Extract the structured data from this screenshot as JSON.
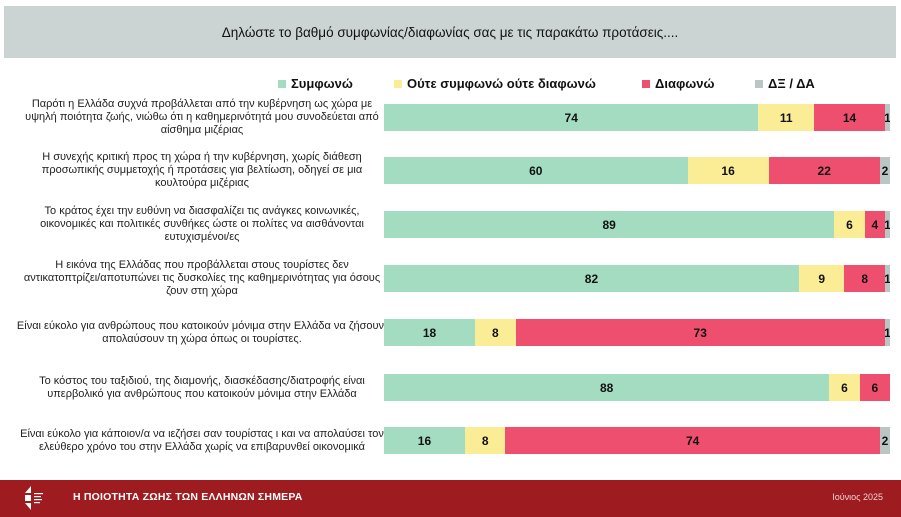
{
  "header": {
    "title": "Δηλώστε το βαθμό συμφωνίας/διαφωνίας σας με τις παρακάτω προτάσεις...."
  },
  "footer": {
    "title": "Η ΠΟΙΟΤΗΤΑ ΖΩΗΣ ΤΩΝ ΕΛΛΗΝΩΝ ΣΗΜΕΡΑ",
    "date": "Ιούνιος 2025"
  },
  "chart_data": {
    "type": "bar",
    "orientation": "horizontal",
    "stacked": true,
    "title": "Δηλώστε το βαθμό συμφωνίας/διαφωνίας σας με τις παρακάτω προτάσεις....",
    "legend_position": "top",
    "xlim": [
      0,
      100
    ],
    "categories": [
      "Παρότι η Ελλάδα συχνά προβάλλεται από την κυβέρνηση ως χώρα με υψηλή ποιότητα ζωής, νιώθω ότι η καθημερινότητά μου συνοδεύεται από αίσθημα μιζέριας",
      "Η συνεχής κριτική προς τη χώρα ή την κυβέρνηση, χωρίς διάθεση προσωπικής συμμετοχής ή προτάσεις για βελτίωση, οδηγεί σε μια κουλτούρα μιζέριας",
      "Το κράτος έχει την ευθύνη να διασφαλίζει τις ανάγκες κοινωνικές, οικονομικές και πολιτικές συνθήκες ώστε οι πολίτες να αισθάνονται ευτυχισμένοι/ες",
      "Η εικόνα της Ελλάδας που προβάλλεται στους τουρίστες δεν αντικατοπτρίζει/αποτυπώνει τις δυσκολίες της καθημερινότητας για όσους ζουν στη χώρα",
      "Είναι εύκολο για ανθρώπους που κατοικούν μόνιμα στην Ελλάδα να ζήσουν/ απολαύσουν τη χώρα όπως οι τουρίστες.",
      "Το κόστος του ταξιδιού, της διαμονής, διασκέδασης/διατροφής είναι υπερβολικό για ανθρώπους που κατοικούν μόνιμα στην Ελλάδα",
      "Είναι εύκολο για κάποιον/α να ιεζήσει σαν τουρίστας\tι και να απολαύσει τον ελεύθερο χρόνο του στην Ελλάδα χωρίς να επιβαρυνθεί οικονομικά"
    ],
    "series": [
      {
        "name": "Συμφωνώ",
        "color": "#a3dcc1",
        "values": [
          74,
          60,
          89,
          82,
          18,
          88,
          16
        ]
      },
      {
        "name": "Ούτε συμφωνώ ούτε διαφωνώ",
        "color": "#fbed95",
        "values": [
          11,
          16,
          6,
          9,
          8,
          6,
          8
        ]
      },
      {
        "name": "Διαφωνώ",
        "color": "#ef4f6e",
        "values": [
          14,
          22,
          4,
          8,
          73,
          6,
          74
        ]
      },
      {
        "name": "ΔΞ / ΔΑ",
        "color": "#b9c6c3",
        "values": [
          1,
          2,
          1,
          1,
          1,
          0,
          2
        ]
      }
    ]
  }
}
